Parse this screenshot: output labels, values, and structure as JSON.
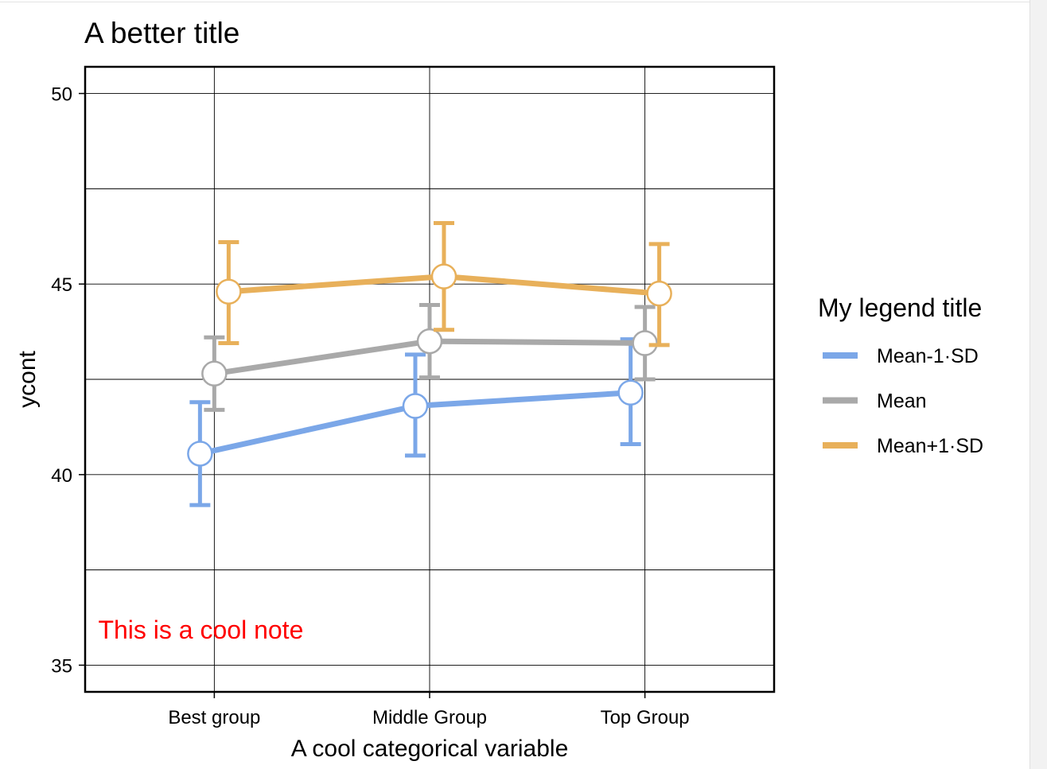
{
  "chart_data": {
    "type": "line",
    "title": "A better title",
    "xlabel": "A cool categorical variable",
    "ylabel": "ycont",
    "categories": [
      "Best group",
      "Middle Group",
      "Top Group"
    ],
    "ylim": [
      34.3,
      50.7
    ],
    "yticks": [
      35,
      40,
      45,
      50
    ],
    "grid": true,
    "legend": {
      "title": "My legend title",
      "placement": "right"
    },
    "note": {
      "text": "This is a cool note",
      "color": "#ff0000",
      "x": 0.05,
      "y": 35.95
    },
    "series": [
      {
        "name": "Mean-1·SD",
        "color": "#7ba7e8",
        "values": [
          40.55,
          41.8,
          42.15
        ],
        "lower": [
          39.2,
          40.5,
          40.8
        ],
        "upper": [
          41.9,
          43.15,
          43.55
        ]
      },
      {
        "name": "Mean",
        "color": "#a9a9a9",
        "values": [
          42.65,
          43.5,
          43.45
        ],
        "lower": [
          41.7,
          42.55,
          42.5
        ],
        "upper": [
          43.6,
          44.45,
          44.4
        ]
      },
      {
        "name": "Mean+1·SD",
        "color": "#e8b05a",
        "values": [
          44.8,
          45.2,
          44.75
        ],
        "lower": [
          43.45,
          43.8,
          43.4
        ],
        "upper": [
          46.1,
          46.6,
          46.05
        ]
      }
    ]
  }
}
